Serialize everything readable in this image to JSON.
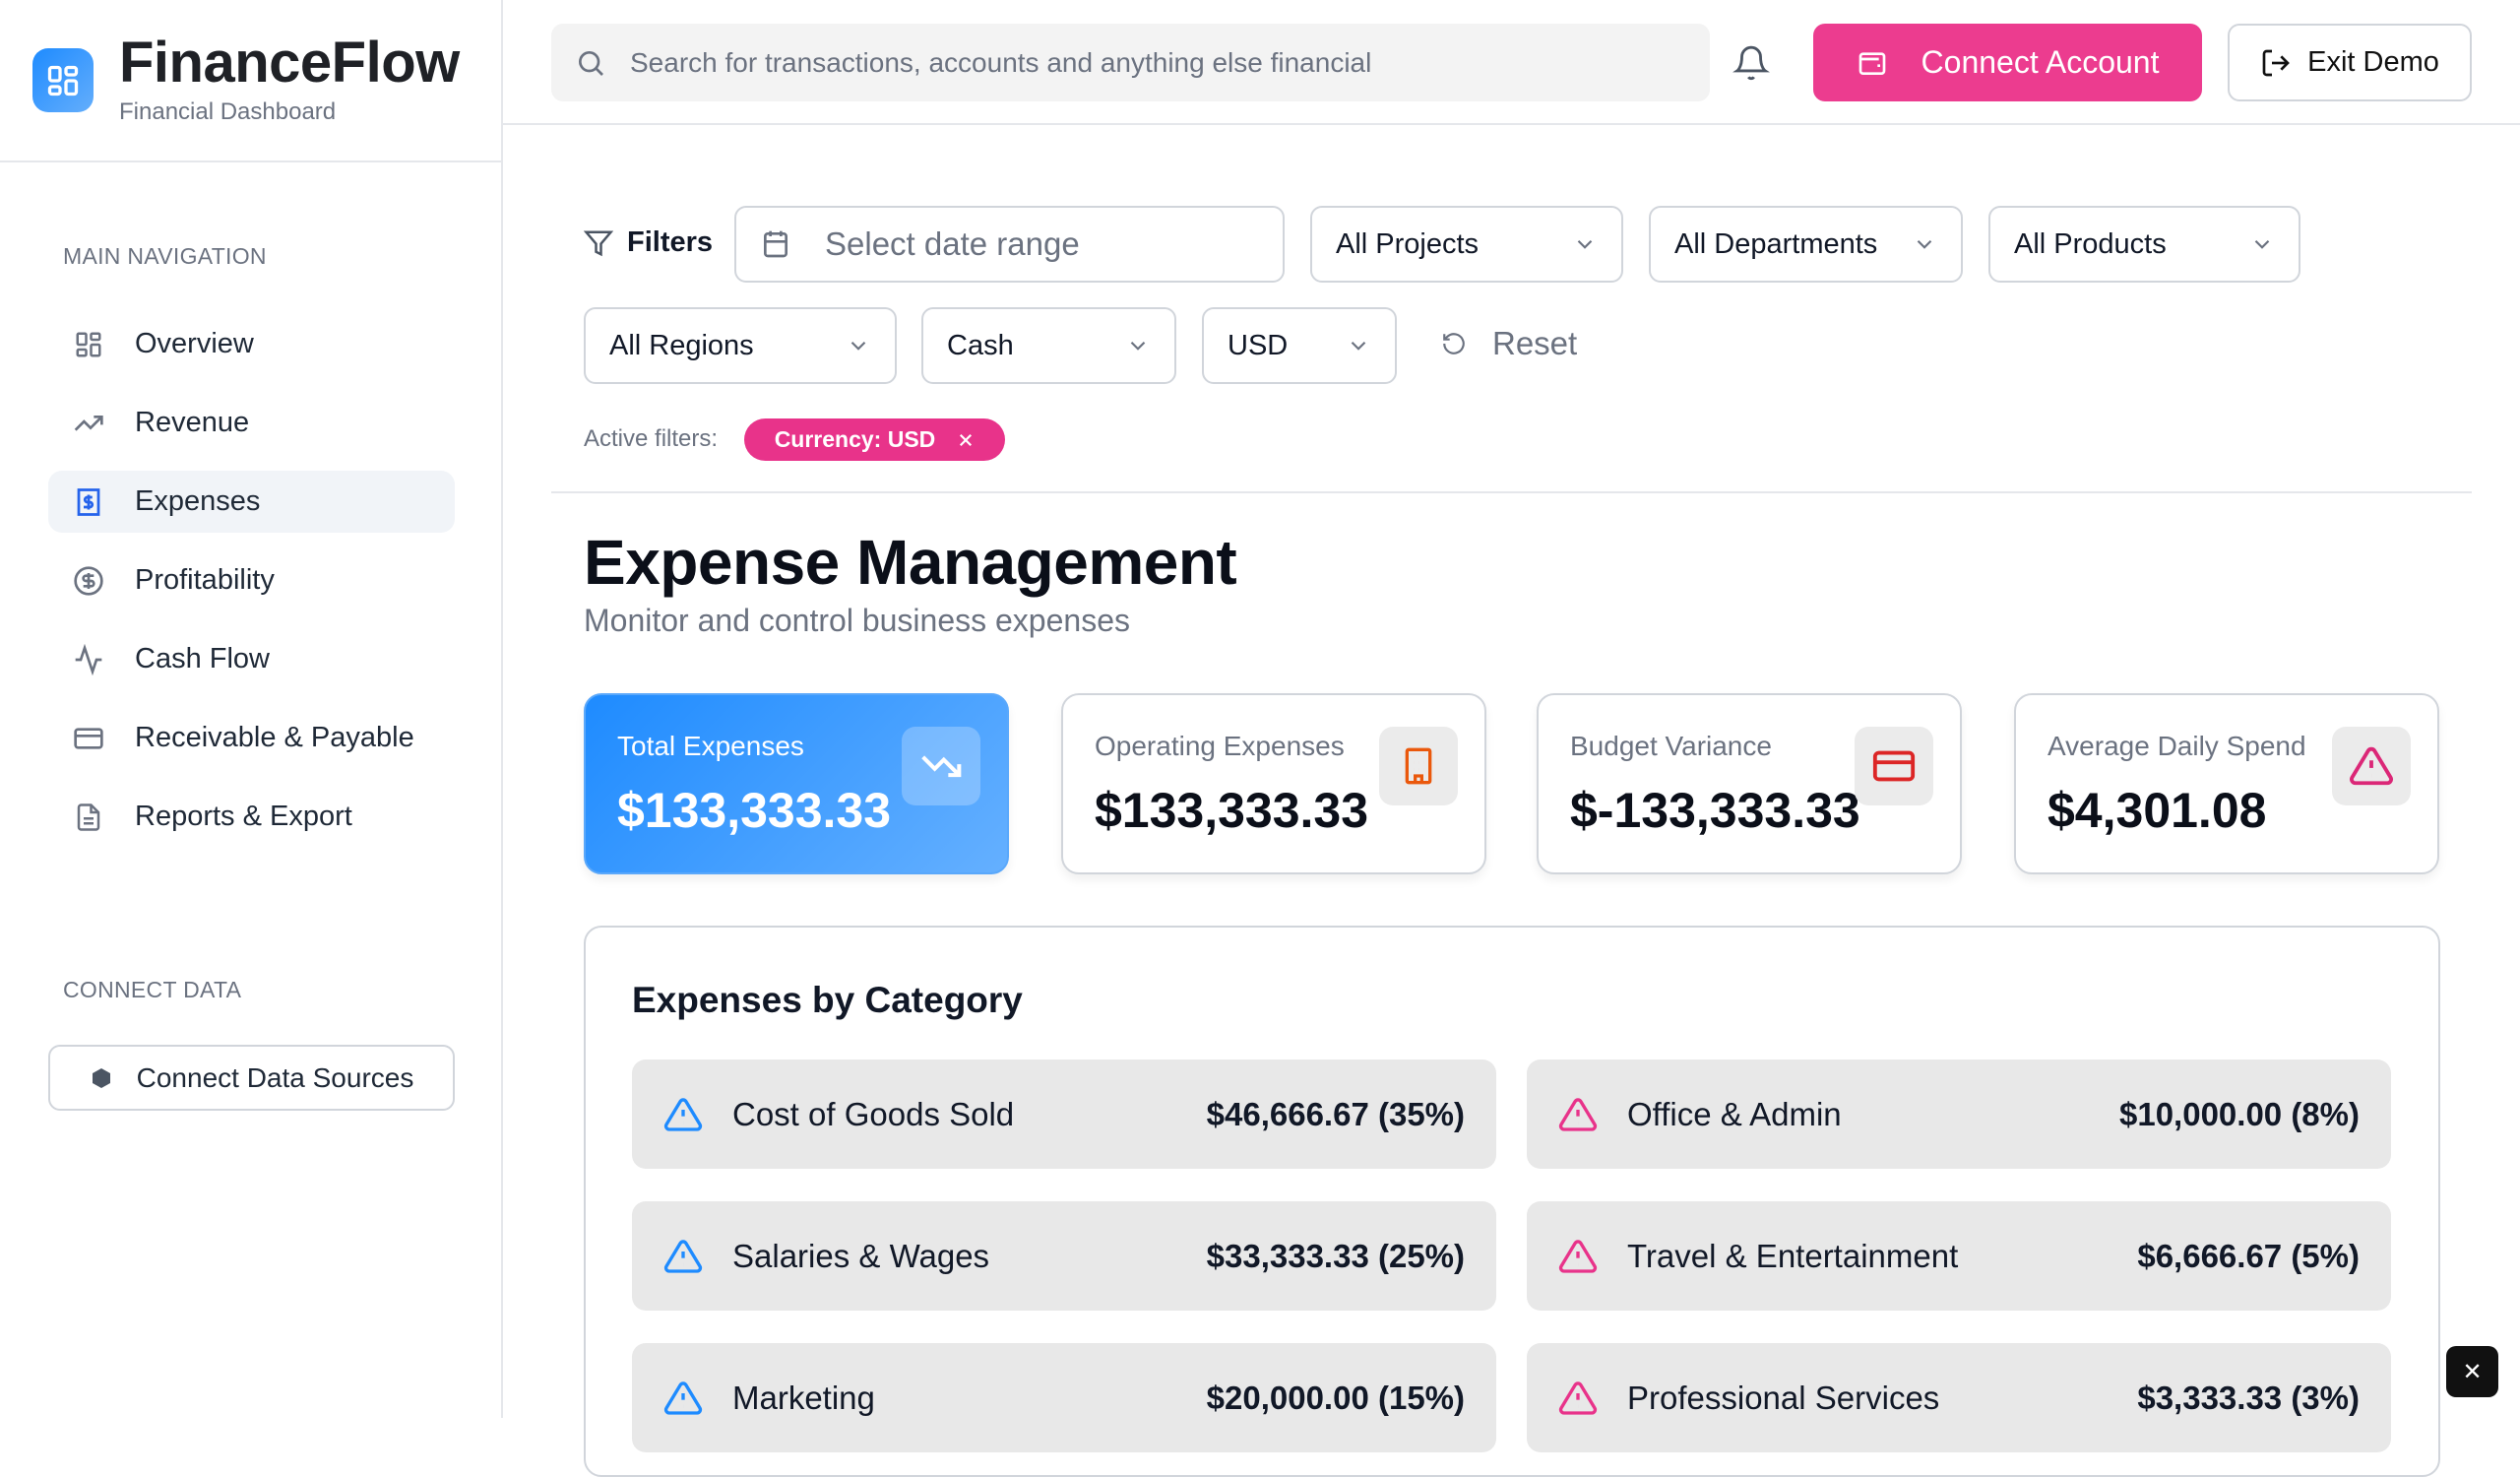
{
  "app": {
    "name": "FinanceFlow",
    "subtitle": "Financial Dashboard"
  },
  "sidebar": {
    "main_heading": "MAIN NAVIGATION",
    "items": [
      {
        "label": "Overview",
        "icon": "grid-icon"
      },
      {
        "label": "Revenue",
        "icon": "trending-up-icon"
      },
      {
        "label": "Expenses",
        "icon": "receipt-icon",
        "active": true
      },
      {
        "label": "Profitability",
        "icon": "dollar-circle-icon"
      },
      {
        "label": "Cash Flow",
        "icon": "activity-icon"
      },
      {
        "label": "Receivable & Payable",
        "icon": "credit-card-icon"
      },
      {
        "label": "Reports & Export",
        "icon": "file-text-icon"
      }
    ],
    "connect_heading": "CONNECT DATA",
    "connect_button": "Connect Data Sources"
  },
  "header": {
    "search_placeholder": "Search for transactions, accounts and anything else financial",
    "connect_account": "Connect Account",
    "exit_demo": "Exit Demo"
  },
  "filters": {
    "label": "Filters",
    "date_placeholder": "Select date range",
    "projects": "All Projects",
    "departments": "All Departments",
    "products": "All Products",
    "regions": "All Regions",
    "account_type": "Cash",
    "currency": "USD",
    "reset": "Reset",
    "active_label": "Active filters:",
    "active_chips": [
      "Currency: USD"
    ]
  },
  "page": {
    "title": "Expense Management",
    "subtitle": "Monitor and control business expenses"
  },
  "kpis": [
    {
      "label": "Total Expenses",
      "value": "$133,333.33",
      "icon": "trending-down-icon"
    },
    {
      "label": "Operating Expenses",
      "value": "$133,333.33",
      "icon": "building-icon",
      "color": "#ea580c"
    },
    {
      "label": "Budget Variance",
      "value": "$-133,333.33",
      "icon": "credit-card-icon",
      "color": "#dc2626"
    },
    {
      "label": "Average Daily Spend",
      "value": "$4,301.08",
      "icon": "alert-triangle-icon",
      "color": "#db2777"
    }
  ],
  "categories": {
    "title": "Expenses by Category",
    "items": [
      {
        "name": "Cost of Goods Sold",
        "amount": "$46,666.67 (35%)",
        "color": "#1e8bff"
      },
      {
        "name": "Office & Admin",
        "amount": "$10,000.00 (8%)",
        "color": "#e8338a"
      },
      {
        "name": "Salaries & Wages",
        "amount": "$33,333.33 (25%)",
        "color": "#1e8bff"
      },
      {
        "name": "Travel & Entertainment",
        "amount": "$6,666.67 (5%)",
        "color": "#e8338a"
      },
      {
        "name": "Marketing",
        "amount": "$20,000.00 (15%)",
        "color": "#1e8bff"
      },
      {
        "name": "Professional Services",
        "amount": "$3,333.33 (3%)",
        "color": "#e8338a"
      }
    ]
  },
  "colors": {
    "primary": "#1e8bff",
    "accent": "#ec3c8f"
  }
}
